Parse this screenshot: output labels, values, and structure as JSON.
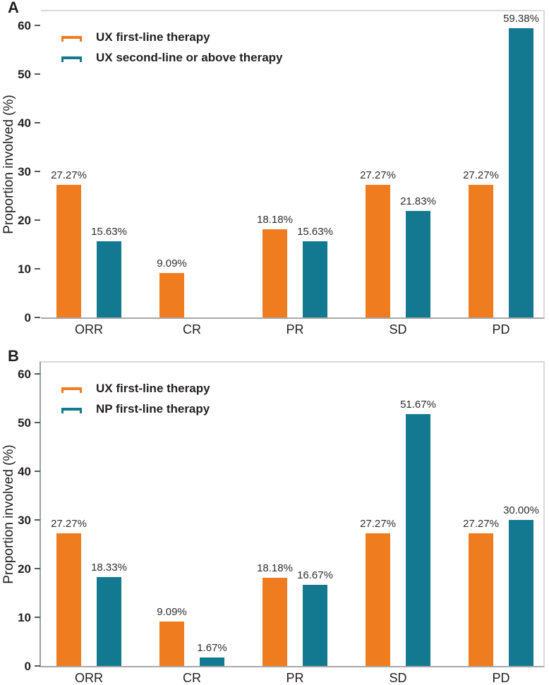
{
  "figure": {
    "panels": [
      {
        "label": "A",
        "ylabel": "Proportion involved (%)"
      },
      {
        "label": "B",
        "ylabel": "Proportion involved (%)"
      }
    ],
    "colors": {
      "series1": "#EF7D1F",
      "series2": "#137990"
    }
  },
  "chart_data": [
    {
      "type": "bar",
      "panel": "A",
      "title": "",
      "xlabel": "",
      "ylabel": "Proportion involved (%)",
      "ylim": [
        0,
        62
      ],
      "yticks": [
        0,
        10,
        20,
        30,
        40,
        50,
        60
      ],
      "grid": false,
      "legend_position": "top-left",
      "categories": [
        "ORR",
        "CR",
        "PR",
        "SD",
        "PD"
      ],
      "series": [
        {
          "name": "UX first-line therapy",
          "color": "#EF7D1F",
          "values": [
            27.27,
            9.09,
            18.18,
            27.27,
            27.27
          ],
          "labels": [
            "27.27%",
            "9.09%",
            "18.18%",
            "27.27%",
            "27.27%"
          ]
        },
        {
          "name": "UX second-line or above therapy",
          "color": "#137990",
          "values": [
            15.63,
            null,
            15.63,
            21.83,
            59.38
          ],
          "labels": [
            "15.63%",
            null,
            "15.63%",
            "21.83%",
            "59.38%"
          ]
        }
      ]
    },
    {
      "type": "bar",
      "panel": "B",
      "title": "",
      "xlabel": "",
      "ylabel": "Proportion involved (%)",
      "ylim": [
        0,
        62
      ],
      "yticks": [
        0,
        10,
        20,
        30,
        40,
        50,
        60
      ],
      "grid": false,
      "legend_position": "top-left",
      "categories": [
        "ORR",
        "CR",
        "PR",
        "SD",
        "PD"
      ],
      "series": [
        {
          "name": "UX first-line therapy",
          "color": "#EF7D1F",
          "values": [
            27.27,
            9.09,
            18.18,
            27.27,
            27.27
          ],
          "labels": [
            "27.27%",
            "9.09%",
            "18.18%",
            "27.27%",
            "27.27%"
          ]
        },
        {
          "name": "NP first-line therapy",
          "color": "#137990",
          "values": [
            18.33,
            1.67,
            16.67,
            51.67,
            30.0
          ],
          "labels": [
            "18.33%",
            "1.67%",
            "16.67%",
            "51.67%",
            "30.00%"
          ]
        }
      ]
    }
  ]
}
